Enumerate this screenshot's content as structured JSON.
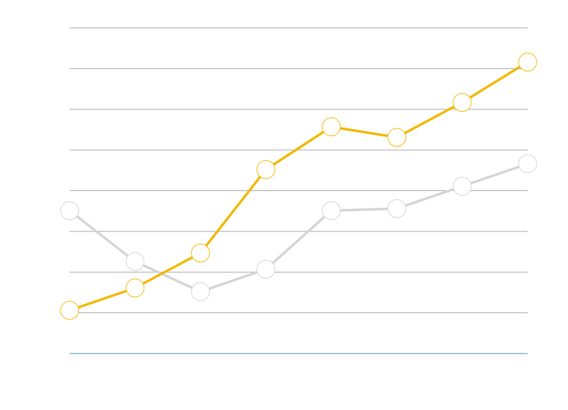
{
  "chart_data": {
    "type": "line",
    "categories": [
      null,
      null,
      null,
      null,
      null,
      null,
      null,
      null
    ],
    "series": [
      {
        "color": "#d4d4d4",
        "values": [
          3.51,
          2.26,
          1.52,
          2.07,
          3.51,
          3.56,
          4.11,
          4.66
        ]
      },
      {
        "color": "#f2b800",
        "values": [
          1.06,
          1.61,
          2.47,
          4.52,
          5.57,
          5.31,
          6.17,
          7.16
        ]
      }
    ],
    "ylim": [
      0,
      8
    ],
    "yticks": [
      0,
      1,
      2,
      3,
      4,
      5,
      6,
      7,
      8
    ],
    "grid": true,
    "grid_color": "#a6a6a6",
    "axis_color": "#3f8ea3"
  }
}
